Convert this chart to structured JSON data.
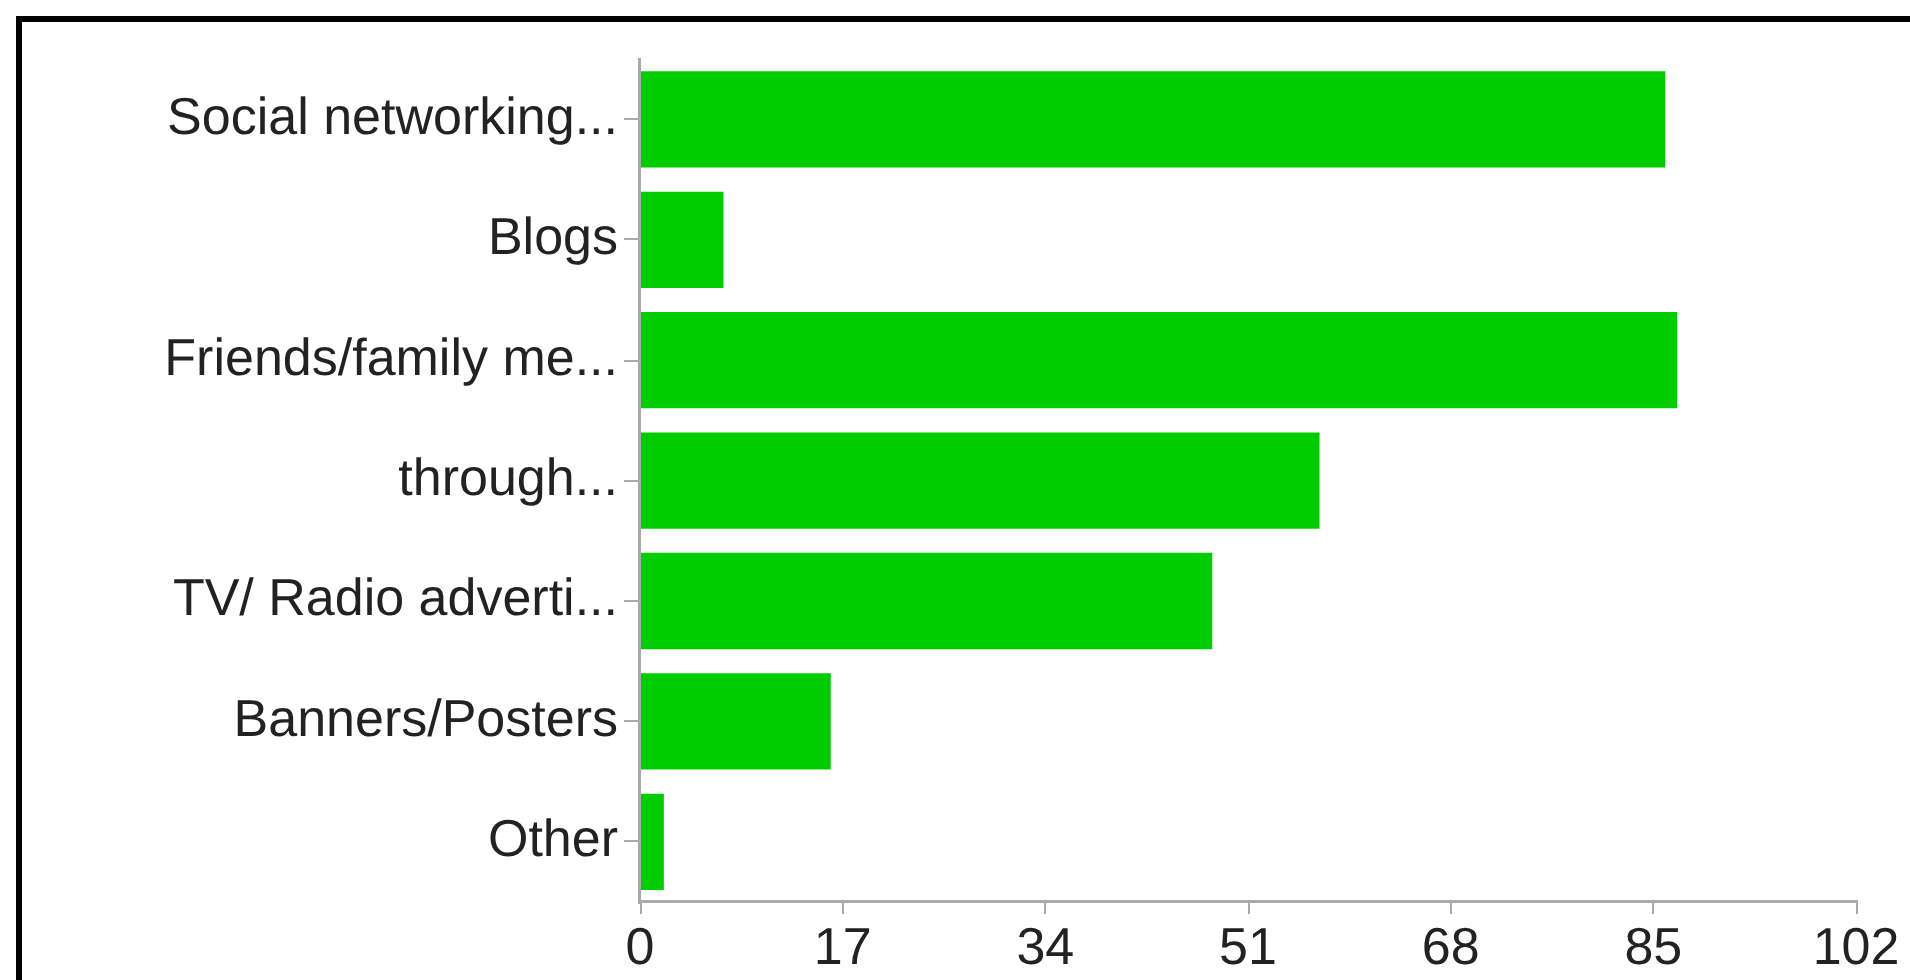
{
  "chart_data": {
    "type": "bar",
    "orientation": "horizontal",
    "categories": [
      "Social networking...",
      "Blogs",
      "Friends/family me...",
      "through...",
      "TV/ Radio adverti...",
      "Banners/Posters",
      "Other"
    ],
    "values": [
      86,
      7,
      87,
      57,
      48,
      16,
      2
    ],
    "color": "#00cc00",
    "xlim": [
      0,
      102
    ],
    "xticks": [
      0,
      17,
      34,
      51,
      68,
      85,
      102
    ]
  }
}
